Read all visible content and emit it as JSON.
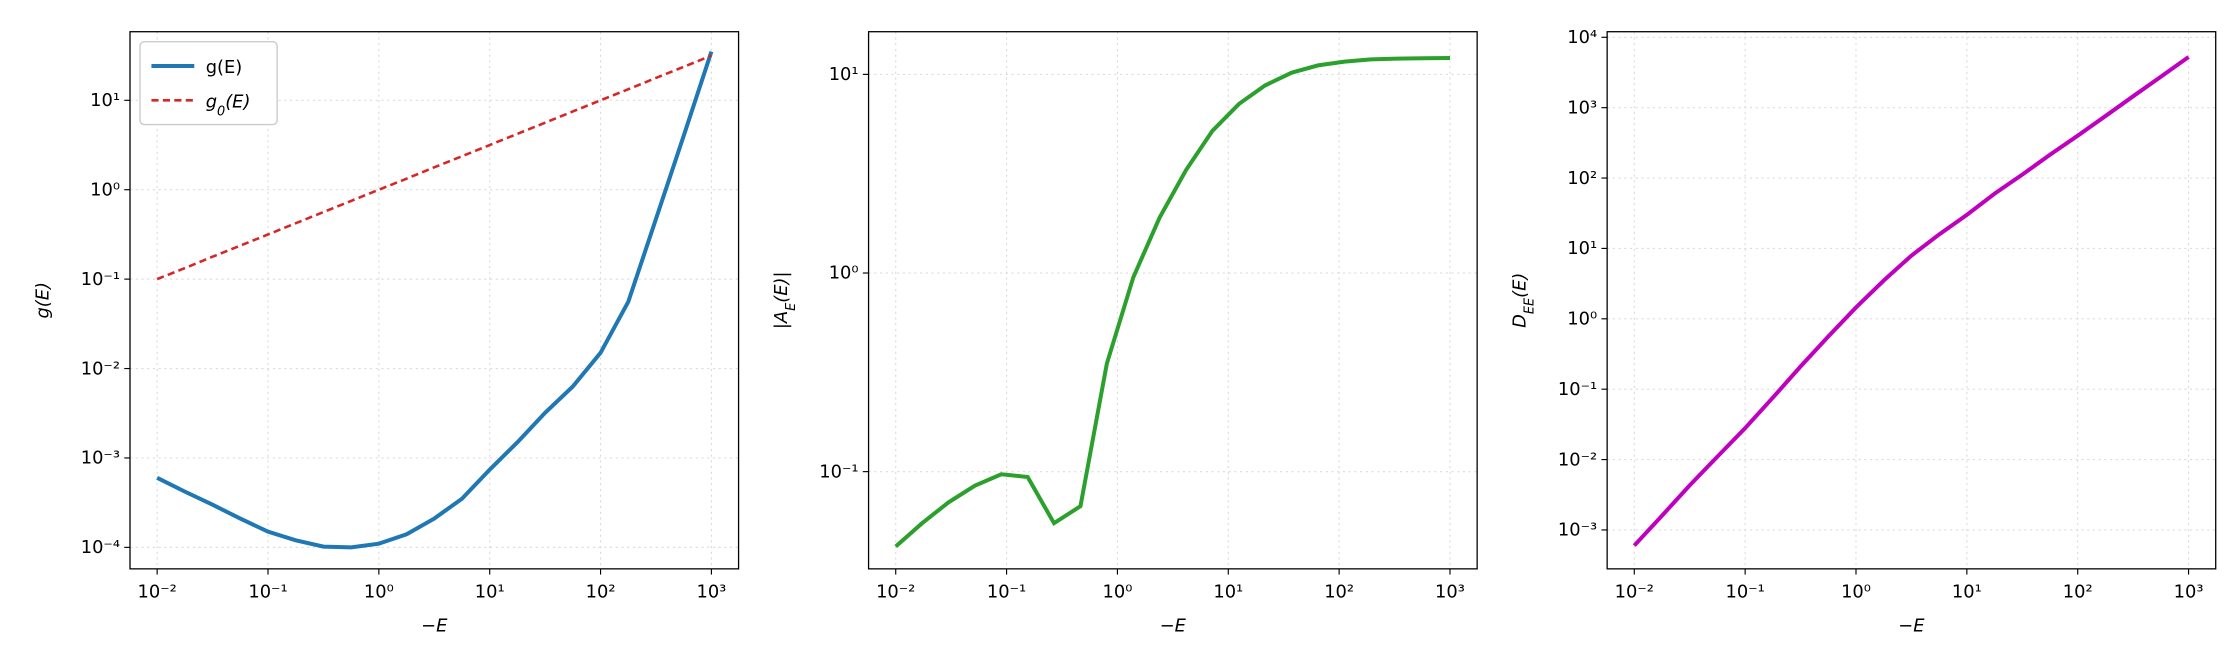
{
  "chart_data": [
    {
      "type": "line",
      "log_x": true,
      "log_y": true,
      "grid": true,
      "legend": "upper-left",
      "xlabel": "−E",
      "ylabel": [
        "g(E)"
      ],
      "x": [
        0.01,
        0.0178,
        0.0316,
        0.0562,
        0.1,
        0.178,
        0.316,
        0.562,
        1,
        1.78,
        3.16,
        5.62,
        10,
        17.8,
        31.6,
        56.2,
        100,
        178,
        316,
        562,
        1000
      ],
      "series": [
        {
          "name": [
            "g(E)"
          ],
          "color": "#1f77b4",
          "dash": false,
          "values": [
            0.0006,
            0.00042,
            0.0003,
            0.00021,
            0.00015,
            0.00012,
            0.000102,
            0.0001,
            0.00011,
            0.00014,
            0.00021,
            0.00035,
            0.00074,
            0.0015,
            0.0032,
            0.0063,
            0.015,
            0.056,
            0.47,
            4,
            35
          ]
        },
        {
          "name": [
            "g",
            "0",
            "(E)"
          ],
          "color": "#d62728",
          "dash": true,
          "values": [
            0.1,
            0.133,
            0.178,
            0.237,
            0.316,
            0.422,
            0.562,
            0.75,
            1,
            1.33,
            1.78,
            2.37,
            3.16,
            4.22,
            5.62,
            7.5,
            10,
            13.3,
            17.8,
            23.7,
            31.6
          ]
        }
      ],
      "xlim": [
        0.00569,
        1758
      ],
      "ylim": [
        5.75e-05,
        58.5
      ],
      "xticks": [
        {
          "value": 0.01,
          "label": "10⁻²"
        },
        {
          "value": 0.1,
          "label": "10⁻¹"
        },
        {
          "value": 1,
          "label": "10⁰"
        },
        {
          "value": 10,
          "label": "10¹"
        },
        {
          "value": 100,
          "label": "10²"
        },
        {
          "value": 1000,
          "label": "10³"
        }
      ],
      "yticks": [
        {
          "value": 0.0001,
          "label": "10⁻⁴"
        },
        {
          "value": 0.001,
          "label": "10⁻³"
        },
        {
          "value": 0.01,
          "label": "10⁻²"
        },
        {
          "value": 0.1,
          "label": "10⁻¹"
        },
        {
          "value": 1,
          "label": "10⁰"
        },
        {
          "value": 10,
          "label": "10¹"
        }
      ]
    },
    {
      "type": "line",
      "log_x": true,
      "log_y": true,
      "grid": true,
      "xlabel": "−E",
      "ylabel": [
        "|A",
        "E",
        "(E)|"
      ],
      "x": [
        0.01,
        0.0173,
        0.0299,
        0.0518,
        0.0896,
        0.155,
        0.268,
        0.464,
        0.803,
        1.39,
        2.4,
        4.16,
        7.2,
        12.5,
        21.5,
        37.3,
        64.5,
        112,
        193,
        334,
        578,
        1000
      ],
      "series": [
        {
          "color": "#2ca02c",
          "dash": false,
          "values": [
            0.042,
            0.055,
            0.07,
            0.085,
            0.097,
            0.094,
            0.055,
            0.067,
            0.35,
            0.95,
            1.9,
            3.3,
            5.2,
            7.1,
            8.8,
            10.2,
            11.1,
            11.6,
            11.9,
            12.0,
            12.05,
            12.1
          ]
        }
      ],
      "xlim": [
        0.00569,
        1758
      ],
      "ylim": [
        0.0324,
        16.4
      ],
      "xticks": [
        {
          "value": 0.01,
          "label": "10⁻²"
        },
        {
          "value": 0.1,
          "label": "10⁻¹"
        },
        {
          "value": 1,
          "label": "10⁰"
        },
        {
          "value": 10,
          "label": "10¹"
        },
        {
          "value": 100,
          "label": "10²"
        },
        {
          "value": 1000,
          "label": "10³"
        }
      ],
      "yticks": [
        {
          "value": 0.1,
          "label": "10⁻¹"
        },
        {
          "value": 1,
          "label": "10⁰"
        },
        {
          "value": 10,
          "label": "10¹"
        }
      ]
    },
    {
      "type": "line",
      "log_x": true,
      "log_y": true,
      "grid": true,
      "xlabel": "−E",
      "ylabel": [
        "D",
        "EE",
        "(E)"
      ],
      "x": [
        0.01,
        0.0178,
        0.0316,
        0.0562,
        0.1,
        0.178,
        0.316,
        0.562,
        1,
        1.78,
        3.16,
        5.62,
        10,
        17.8,
        31.6,
        56.2,
        100,
        178,
        316,
        562,
        1000
      ],
      "series": [
        {
          "color": "#bf00bf",
          "dash": false,
          "values": [
            0.0006,
            0.0016,
            0.0043,
            0.011,
            0.028,
            0.076,
            0.21,
            0.56,
            1.45,
            3.5,
            7.9,
            15.8,
            30,
            60,
            112,
            214,
            400,
            760,
            1450,
            2750,
            5250
          ]
        }
      ],
      "xlim": [
        0.00569,
        1758
      ],
      "ylim": [
        0.00028,
        12000
      ],
      "xticks": [
        {
          "value": 0.01,
          "label": "10⁻²"
        },
        {
          "value": 0.1,
          "label": "10⁻¹"
        },
        {
          "value": 1,
          "label": "10⁰"
        },
        {
          "value": 10,
          "label": "10¹"
        },
        {
          "value": 100,
          "label": "10²"
        },
        {
          "value": 1000,
          "label": "10³"
        }
      ],
      "yticks": [
        {
          "value": 0.001,
          "label": "10⁻³"
        },
        {
          "value": 0.01,
          "label": "10⁻²"
        },
        {
          "value": 0.1,
          "label": "10⁻¹"
        },
        {
          "value": 1,
          "label": "10⁰"
        },
        {
          "value": 10,
          "label": "10¹"
        },
        {
          "value": 100,
          "label": "10²"
        },
        {
          "value": 1000,
          "label": "10³"
        },
        {
          "value": 10000,
          "label": "10⁴"
        }
      ]
    }
  ]
}
